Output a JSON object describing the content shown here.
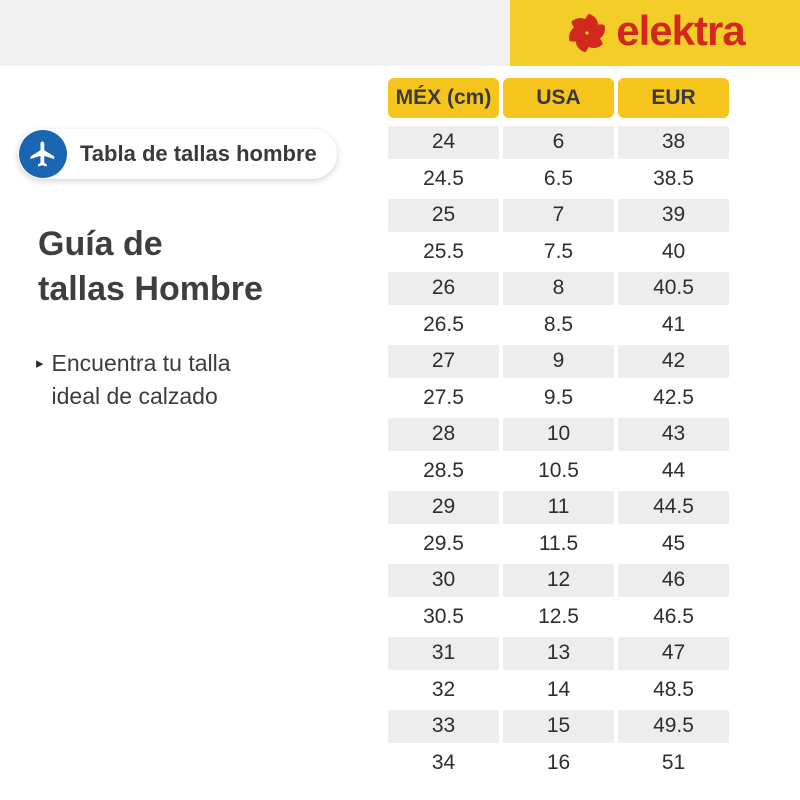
{
  "brand": {
    "logo_text": "elektra",
    "logo_icon": "pinwheel-icon"
  },
  "badge": {
    "label": "Tabla de tallas hombre",
    "icon": "airplane-icon"
  },
  "heading": {
    "title": "Guía de\ntallas Hombre"
  },
  "intro": {
    "bullet": "▸",
    "text": "Encuentra tu talla\nideal de calzado"
  },
  "table": {
    "headers": [
      "MÉX (cm)",
      "USA",
      "EUR"
    ],
    "rows": [
      [
        "24",
        "6",
        "38"
      ],
      [
        "24.5",
        "6.5",
        "38.5"
      ],
      [
        "25",
        "7",
        "39"
      ],
      [
        "25.5",
        "7.5",
        "40"
      ],
      [
        "26",
        "8",
        "40.5"
      ],
      [
        "26.5",
        "8.5",
        "41"
      ],
      [
        "27",
        "9",
        "42"
      ],
      [
        "27.5",
        "9.5",
        "42.5"
      ],
      [
        "28",
        "10",
        "43"
      ],
      [
        "28.5",
        "10.5",
        "44"
      ],
      [
        "29",
        "11",
        "44.5"
      ],
      [
        "29.5",
        "11.5",
        "45"
      ],
      [
        "30",
        "12",
        "46"
      ],
      [
        "30.5",
        "12.5",
        "46.5"
      ],
      [
        "31",
        "13",
        "47"
      ],
      [
        "32",
        "14",
        "48.5"
      ],
      [
        "33",
        "15",
        "49.5"
      ],
      [
        "34",
        "16",
        "51"
      ]
    ]
  },
  "colors": {
    "banner-yellow": "#F3CE28",
    "header-yellow": "#F5C41D",
    "brand-red": "#D2281E",
    "badge-blue": "#1B66B2",
    "row-gray": "#EDEDEE",
    "band-gray": "#F1F1F1",
    "text-dark": "#3A3A3A"
  }
}
